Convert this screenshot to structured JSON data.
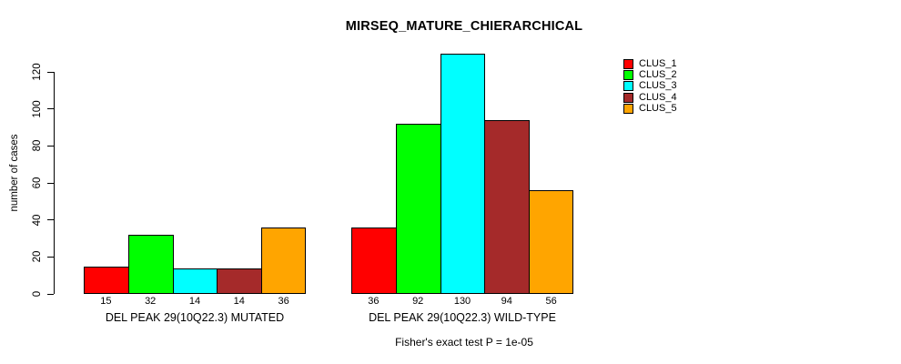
{
  "chart_data": {
    "type": "bar",
    "title": "MIRSEQ_MATURE_CHIERARCHICAL",
    "ylabel": "number of cases",
    "xlabel": "",
    "annotation": "Fisher's exact test P = 1e-05",
    "ylim": [
      0,
      130
    ],
    "yticks": [
      0,
      20,
      40,
      60,
      80,
      100,
      120
    ],
    "grid": false,
    "legend_position": "top-right",
    "background_color": "#FFFFFF",
    "bar_border_color": "#000000",
    "series": [
      {
        "name": "CLUS_1",
        "color": "#FF0000"
      },
      {
        "name": "CLUS_2",
        "color": "#00FF00"
      },
      {
        "name": "CLUS_3",
        "color": "#00FFFF"
      },
      {
        "name": "CLUS_4",
        "color": "#A52A2A"
      },
      {
        "name": "CLUS_5",
        "color": "#FFA500"
      }
    ],
    "groups": [
      {
        "label": "DEL PEAK 29(10Q22.3) MUTATED",
        "values": [
          15,
          32,
          14,
          14,
          36
        ]
      },
      {
        "label": "DEL PEAK 29(10Q22.3) WILD-TYPE",
        "values": [
          36,
          92,
          130,
          94,
          56
        ]
      }
    ]
  }
}
